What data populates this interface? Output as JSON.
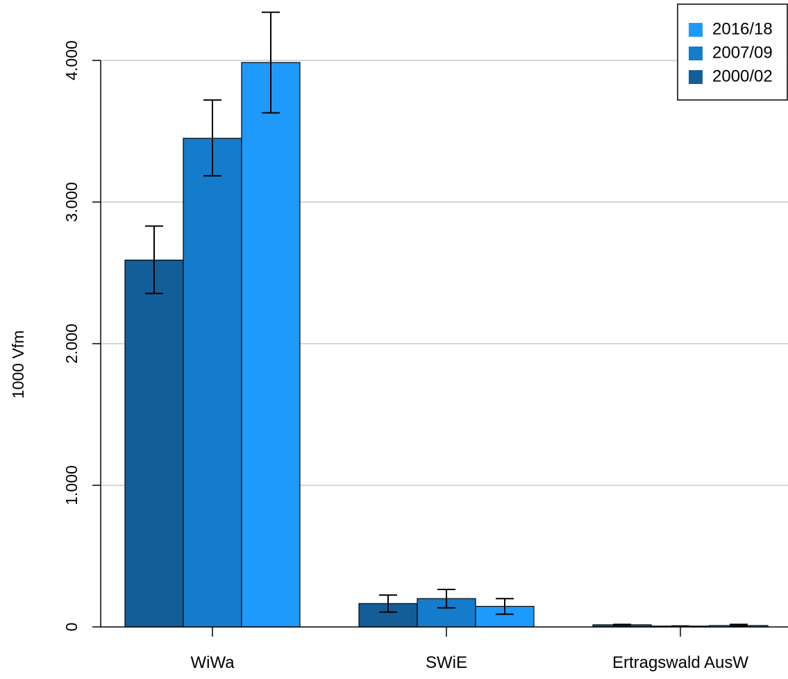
{
  "chart_data": {
    "type": "bar",
    "title": "",
    "xlabel": "",
    "ylabel": "1000 Vfm",
    "categories": [
      "WiWa",
      "SWiE",
      "Ertragswald AusW"
    ],
    "ylim": [
      0,
      4000
    ],
    "yticks": [
      0,
      1000,
      2000,
      3000,
      4000
    ],
    "ytick_labels": [
      "0",
      "1.000",
      "2.000",
      "3.000",
      "4.000"
    ],
    "grid": "horizontal",
    "legend_position": "top-right",
    "legend_order": [
      "2016/18",
      "2007/09",
      "2000/02"
    ],
    "series": [
      {
        "name": "2000/02",
        "color": "#135d99",
        "values": [
          2590,
          165,
          15
        ],
        "error_low": [
          2355,
          105,
          12
        ],
        "error_high": [
          2830,
          225,
          18
        ]
      },
      {
        "name": "2007/09",
        "color": "#157bcb",
        "values": [
          3450,
          200,
          5
        ],
        "error_low": [
          3185,
          135,
          3
        ],
        "error_high": [
          3720,
          265,
          7
        ]
      },
      {
        "name": "2016/18",
        "color": "#1e9afc",
        "values": [
          3985,
          145,
          10
        ],
        "error_low": [
          3630,
          90,
          5
        ],
        "error_high": [
          4340,
          200,
          18
        ]
      }
    ]
  }
}
